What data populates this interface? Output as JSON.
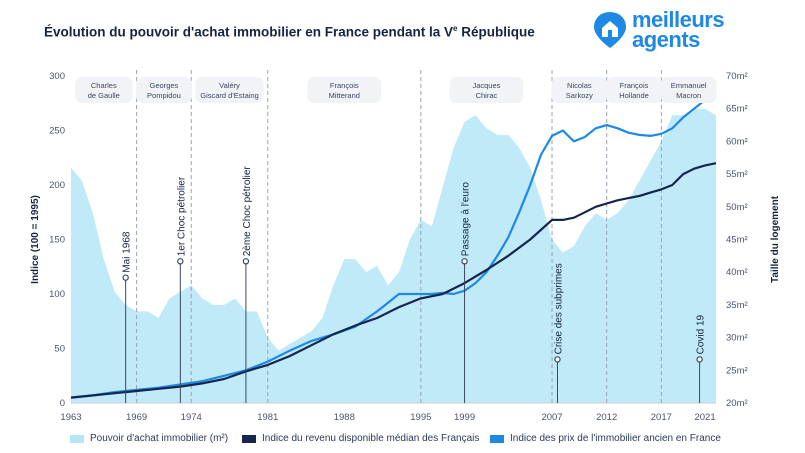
{
  "title": "Évolution du pouvoir d'achat immobilier en France pendant la V",
  "title_sup": "e",
  "title_end": " République",
  "logo": {
    "line1": "meilleurs",
    "line2": "agents",
    "icon": "house-pin-icon"
  },
  "colors": {
    "area": "#b5e6f7",
    "revenue": "#14264d",
    "price": "#1e88e5",
    "dash": "#9aa3b2",
    "label_bg": "#f1f3f6"
  },
  "chart_data": {
    "type": "line",
    "title": "Évolution du pouvoir d'achat immobilier en France pendant la Ve République",
    "ylabel": "Indice (100 = 1995)",
    "y2label": "Taille du logement",
    "ylim": [
      0,
      300
    ],
    "y2lim": [
      20,
      70
    ],
    "xlim": [
      1963,
      2022
    ],
    "x_ticks": [
      1963,
      1969,
      1974,
      1981,
      1988,
      1995,
      1999,
      2007,
      2012,
      2017,
      2021
    ],
    "y_ticks": [
      0,
      50,
      100,
      150,
      200,
      250,
      300
    ],
    "y2_ticks": [
      "20m²",
      "25m²",
      "30m²",
      "35m²",
      "40m²",
      "45m²",
      "50m²",
      "55m²",
      "60m²",
      "65m²",
      "70m²"
    ],
    "y2_tick_values": [
      20,
      25,
      30,
      35,
      40,
      45,
      50,
      55,
      60,
      65,
      70
    ],
    "series": [
      {
        "name": "Pouvoir d'achat immobilier (m²)",
        "kind": "area",
        "axis": "right",
        "x": [
          1963,
          1964,
          1965,
          1966,
          1967,
          1968,
          1969,
          1970,
          1971,
          1972,
          1973,
          1974,
          1975,
          1976,
          1977,
          1978,
          1979,
          1980,
          1981,
          1982,
          1983,
          1984,
          1985,
          1986,
          1987,
          1988,
          1989,
          1990,
          1991,
          1992,
          1993,
          1994,
          1995,
          1996,
          1997,
          1998,
          1999,
          2000,
          2001,
          2002,
          2003,
          2004,
          2005,
          2006,
          2007,
          2008,
          2009,
          2010,
          2011,
          2012,
          2013,
          2014,
          2015,
          2016,
          2017,
          2018,
          2019,
          2020,
          2021,
          2022
        ],
        "values": [
          56,
          54,
          49,
          42,
          37,
          35,
          34,
          34,
          33,
          36,
          37,
          38,
          36,
          35,
          35,
          36,
          34,
          34,
          30,
          28,
          29,
          30,
          31,
          33,
          38,
          42,
          42,
          40,
          41,
          38,
          40,
          45,
          48,
          47,
          53,
          59,
          63,
          64,
          62,
          61,
          61,
          59,
          56,
          51,
          45,
          43,
          44,
          47,
          49,
          48,
          49,
          51,
          54,
          57,
          60,
          64,
          64,
          65,
          65,
          64
        ]
      },
      {
        "name": "Indice du revenu disponible médian des Français",
        "kind": "line",
        "axis": "left",
        "x": [
          1963,
          1965,
          1967,
          1969,
          1971,
          1973,
          1975,
          1977,
          1979,
          1981,
          1983,
          1985,
          1987,
          1989,
          1991,
          1993,
          1995,
          1997,
          1999,
          2001,
          2003,
          2005,
          2007,
          2008,
          2009,
          2010,
          2011,
          2012,
          2013,
          2014,
          2015,
          2016,
          2017,
          2018,
          2019,
          2020,
          2021,
          2022
        ],
        "values": [
          5,
          7,
          9,
          11,
          13,
          15,
          18,
          22,
          29,
          35,
          43,
          53,
          63,
          71,
          78,
          88,
          96,
          100,
          110,
          122,
          135,
          150,
          168,
          168,
          170,
          175,
          180,
          183,
          186,
          188,
          190,
          193,
          196,
          200,
          210,
          215,
          218,
          220
        ]
      },
      {
        "name": "Indice des prix de l'immobilier ancien en France",
        "kind": "line",
        "axis": "left",
        "x": [
          1963,
          1965,
          1967,
          1969,
          1971,
          1973,
          1975,
          1977,
          1979,
          1981,
          1983,
          1985,
          1987,
          1989,
          1991,
          1993,
          1995,
          1996,
          1997,
          1998,
          1999,
          2000,
          2001,
          2002,
          2003,
          2004,
          2005,
          2006,
          2007,
          2008,
          2009,
          2010,
          2011,
          2012,
          2013,
          2014,
          2015,
          2016,
          2017,
          2018,
          2019,
          2020,
          2021,
          2022
        ],
        "values": [
          5,
          7,
          10,
          12,
          14,
          17,
          20,
          25,
          30,
          38,
          48,
          57,
          63,
          70,
          84,
          100,
          100,
          100,
          101,
          100,
          103,
          110,
          120,
          135,
          152,
          175,
          200,
          228,
          245,
          250,
          240,
          244,
          252,
          255,
          252,
          248,
          246,
          245,
          247,
          252,
          262,
          270,
          278,
          285
        ]
      }
    ],
    "events": [
      {
        "label": "Mai 1968",
        "year": 1968,
        "value": 115
      },
      {
        "label": "1er Choc pétrolier",
        "year": 1973,
        "value": 130
      },
      {
        "label": "2ème Choc pétrolier",
        "year": 1979,
        "value": 130
      },
      {
        "label": "Passage à l'euro",
        "year": 1999,
        "value": 130
      },
      {
        "label": "Crise des subprimes",
        "year": 2007.5,
        "value": 40
      },
      {
        "label": "Covid 19",
        "year": 2020.5,
        "value": 40
      }
    ],
    "presidents": [
      {
        "line1": "Charles",
        "line2": "de Gaulle",
        "start": 1963,
        "end": 1969
      },
      {
        "line1": "Georges",
        "line2": "Pompidou",
        "start": 1969,
        "end": 1974
      },
      {
        "line1": "Valéry",
        "line2": "Giscard d'Estaing",
        "start": 1974,
        "end": 1981
      },
      {
        "line1": "François",
        "line2": "Mitterand",
        "start": 1981,
        "end": 1995
      },
      {
        "line1": "Jacques",
        "line2": "Chirac",
        "start": 1995,
        "end": 2007
      },
      {
        "line1": "Nicolas",
        "line2": "Sarkozy",
        "start": 2007,
        "end": 2012
      },
      {
        "line1": "François",
        "line2": "Hollande",
        "start": 2012,
        "end": 2017
      },
      {
        "line1": "Emmanuel",
        "line2": "Macron",
        "start": 2017,
        "end": 2022
      }
    ],
    "boundaries": [
      1969,
      1974,
      1981,
      1995,
      2007,
      2012,
      2017
    ]
  },
  "legend": {
    "area": "Pouvoir d'achat immobilier (m²)",
    "revenue": "Indice du revenu disponible médian des Français",
    "price": "Indice des prix de l'immobilier ancien en France"
  }
}
